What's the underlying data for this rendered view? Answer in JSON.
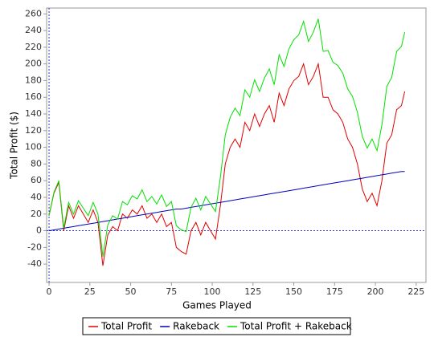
{
  "chart_data": {
    "type": "line",
    "x_label": "Games Played",
    "y_label": "Total Profit ($)",
    "x": [
      0,
      3,
      6,
      9,
      12,
      15,
      18,
      21,
      24,
      27,
      30,
      33,
      36,
      39,
      42,
      45,
      48,
      51,
      54,
      57,
      60,
      63,
      66,
      69,
      72,
      75,
      78,
      81,
      84,
      87,
      90,
      93,
      96,
      99,
      102,
      105,
      108,
      111,
      114,
      117,
      120,
      123,
      126,
      129,
      132,
      135,
      138,
      141,
      144,
      147,
      150,
      153,
      156,
      159,
      162,
      165,
      168,
      171,
      174,
      177,
      180,
      183,
      186,
      189,
      192,
      195,
      198,
      201,
      204,
      207,
      210,
      213,
      216,
      218
    ],
    "series": [
      {
        "name": "Total Profit",
        "color": "#e00000",
        "values": [
          18,
          45,
          58,
          0,
          30,
          15,
          30,
          20,
          10,
          25,
          10,
          -42,
          -5,
          5,
          0,
          20,
          15,
          25,
          20,
          30,
          15,
          20,
          10,
          20,
          5,
          10,
          -20,
          -25,
          -28,
          0,
          10,
          -5,
          10,
          0,
          -10,
          30,
          80,
          100,
          110,
          100,
          130,
          120,
          140,
          125,
          140,
          150,
          130,
          165,
          150,
          170,
          180,
          185,
          200,
          175,
          185,
          200,
          160,
          160,
          145,
          140,
          130,
          110,
          100,
          80,
          50,
          35,
          45,
          30,
          60,
          105,
          115,
          145,
          150,
          167
        ]
      },
      {
        "name": "Rakeback",
        "color": "#0000c0",
        "values": [
          0,
          1,
          2,
          3,
          4,
          5,
          6,
          7,
          8,
          9,
          10,
          11,
          12,
          13,
          14,
          15,
          16,
          17,
          18,
          19,
          20,
          21,
          22,
          23,
          24,
          25,
          26,
          26,
          27,
          28,
          29,
          30,
          31,
          32,
          33,
          34,
          35,
          36,
          37,
          38,
          39,
          40,
          41,
          42,
          43,
          44,
          45,
          46,
          47,
          48,
          49,
          50,
          51,
          52,
          53,
          54,
          55,
          56,
          57,
          58,
          59,
          60,
          61,
          62,
          63,
          64,
          65,
          66,
          67,
          68,
          69,
          70,
          71,
          71
        ]
      },
      {
        "name": "Total Profit + Rakeback",
        "color": "#00e000",
        "values": [
          18,
          46,
          60,
          3,
          34,
          20,
          36,
          27,
          18,
          34,
          20,
          -31,
          7,
          18,
          14,
          35,
          31,
          42,
          38,
          49,
          35,
          41,
          32,
          43,
          29,
          35,
          6,
          1,
          -1,
          28,
          39,
          25,
          41,
          32,
          23,
          64,
          115,
          136,
          147,
          138,
          169,
          160,
          181,
          167,
          183,
          194,
          175,
          211,
          197,
          218,
          229,
          235,
          251,
          227,
          238,
          254,
          215,
          216,
          202,
          198,
          189,
          170,
          161,
          142,
          113,
          99,
          110,
          96,
          127,
          173,
          184,
          215,
          221,
          238
        ]
      }
    ],
    "xlim": [
      -1.5,
      231
    ],
    "ylim": [
      -62,
      267
    ],
    "xticks": [
      0,
      25,
      50,
      75,
      100,
      125,
      150,
      175,
      200,
      225
    ],
    "yticks": [
      -40,
      -20,
      0,
      20,
      40,
      60,
      80,
      100,
      120,
      140,
      160,
      180,
      200,
      220,
      240,
      260
    ],
    "zero_lines": true,
    "legend": "bottom"
  }
}
